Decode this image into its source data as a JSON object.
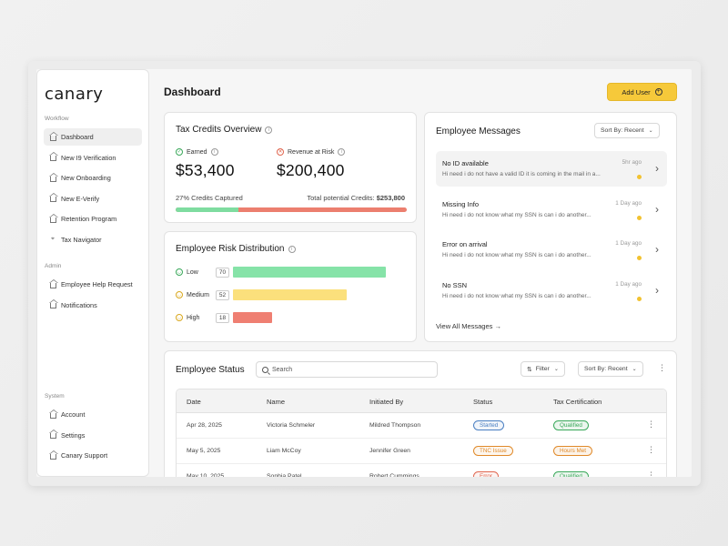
{
  "app": {
    "logo": "canary",
    "page_title": "Dashboard",
    "add_user_label": "Add User"
  },
  "sidebar": {
    "sections": [
      {
        "label": "Workflow",
        "items": [
          {
            "label": "Dashboard",
            "icon": "home-icon",
            "active": true
          },
          {
            "label": "New I9 Verification",
            "icon": "home-icon"
          },
          {
            "label": "New Onboarding",
            "icon": "home-icon"
          },
          {
            "label": "New E-Verify",
            "icon": "home-icon"
          },
          {
            "label": "Retention Program",
            "icon": "home-icon"
          },
          {
            "label": "Tax Navigator",
            "icon": "map-pin-icon"
          }
        ]
      },
      {
        "label": "Admin",
        "items": [
          {
            "label": "Employee Help Request",
            "icon": "home-icon"
          },
          {
            "label": "Notifications",
            "icon": "home-icon"
          }
        ]
      },
      {
        "label": "System",
        "items": [
          {
            "label": "Account",
            "icon": "home-icon"
          },
          {
            "label": "Settings",
            "icon": "home-icon"
          },
          {
            "label": "Canary Support",
            "icon": "home-icon"
          }
        ]
      }
    ]
  },
  "tax_credits": {
    "title": "Tax Credits Overview",
    "earned_label": "Earned",
    "earned_value": "$53,400",
    "risk_label": "Revenue at Risk",
    "risk_value": "$200,400",
    "captured_pct": "27%",
    "captured_label": "Credits Captured",
    "total_label": "Total potential Credits:",
    "total_value": "$253,800",
    "progress_fraction": 0.27,
    "colors": {
      "earned": "#7fdca0",
      "risk": "#ec7f6f"
    }
  },
  "risk_distribution": {
    "title": "Employee Risk Distribution",
    "rows": [
      {
        "label": "Low",
        "count": "70",
        "value": 70,
        "color": "#86e3a8",
        "icon": "smile-icon",
        "icon_color": "#3aa85a"
      },
      {
        "label": "Medium",
        "count": "52",
        "value": 52,
        "color": "#fbe07c",
        "icon": "neutral-face-icon",
        "icon_color": "#d9a81e"
      },
      {
        "label": "High",
        "count": "18",
        "value": 18,
        "color": "#ef7f72",
        "icon": "frown-icon",
        "icon_color": "#d9a81e"
      }
    ],
    "max": 70
  },
  "messages": {
    "title": "Employee Messages",
    "sort_label": "Sort By: Recent",
    "items": [
      {
        "title": "No ID available",
        "body": "Hi need i do not have a valid ID it is coming in the mail in a...",
        "time": "5hr ago"
      },
      {
        "title": "Missing Info",
        "body": "Hi need i do not know what my SSN is can i do another...",
        "time": "1 Day ago"
      },
      {
        "title": "Error on arrival",
        "body": "Hi need i do not know what my SSN is can i do another...",
        "time": "1 Day ago"
      },
      {
        "title": "No SSN",
        "body": "Hi need i do not know what my SSN is can i do another...",
        "time": "1 Day ago"
      }
    ],
    "view_all": "View All Messages"
  },
  "employee_status": {
    "title": "Employee Status",
    "search_placeholder": "Search",
    "filter_label": "Filter",
    "sort_label": "Sort By: Recent",
    "columns": [
      "Date",
      "Name",
      "Initiated By",
      "Status",
      "Tax Certification"
    ],
    "rows": [
      {
        "date": "Apr 28, 2025",
        "name": "Victoria Schmeler",
        "initiated_by": "Mildred Thompson",
        "status": "Started",
        "status_color": "#4a7fc1",
        "tax": "Qualified",
        "tax_color": "#3aa85a"
      },
      {
        "date": "May 5, 2025",
        "name": "Liam McCoy",
        "initiated_by": "Jennifer Green",
        "status": "TNC Issue",
        "status_color": "#e08a2a",
        "tax": "Hours Met",
        "tax_color": "#e08a2a"
      },
      {
        "date": "May 10, 2025",
        "name": "Sophia Patel",
        "initiated_by": "Robert Cummings",
        "status": "Error",
        "status_color": "#e0664f",
        "tax": "Qualified",
        "tax_color": "#3aa85a"
      }
    ]
  }
}
